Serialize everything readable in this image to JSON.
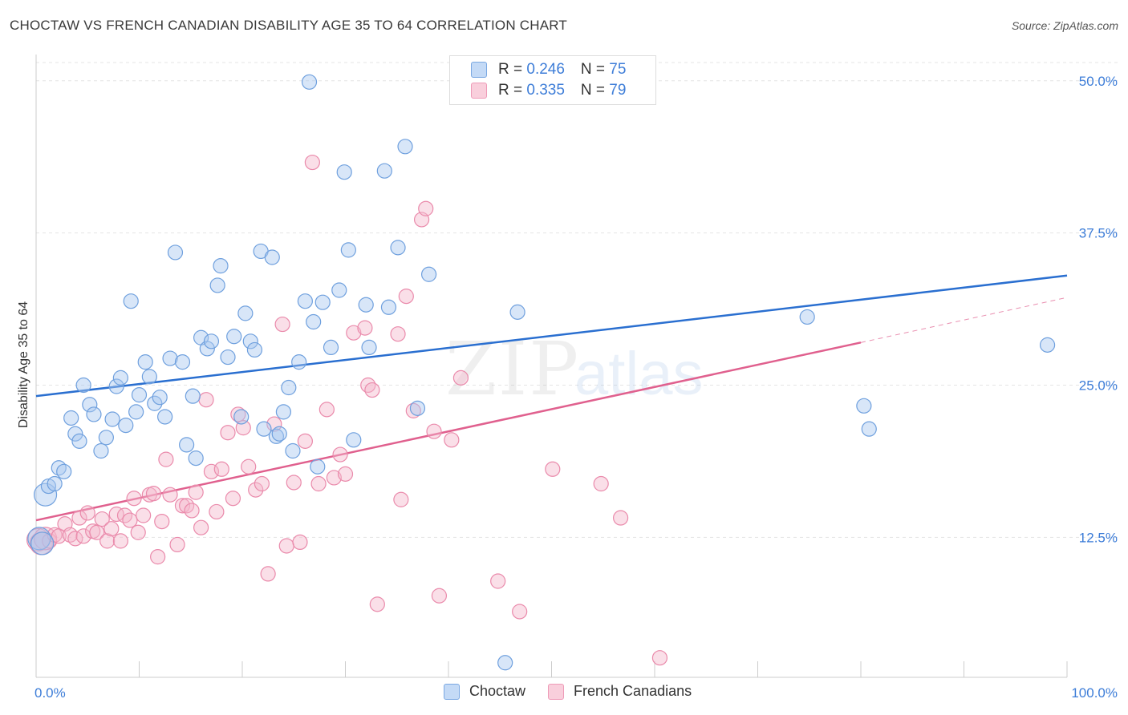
{
  "title": "CHOCTAW VS FRENCH CANADIAN DISABILITY AGE 35 TO 64 CORRELATION CHART",
  "source": "Source: ZipAtlas.com",
  "watermark": {
    "zip": "ZIP",
    "atlas": "atlas"
  },
  "legend": {
    "rows": [
      {
        "r_label": "R = ",
        "r_value": "0.246",
        "n_label": "N = ",
        "n_value": "75"
      },
      {
        "r_label": "R = ",
        "r_value": "0.335",
        "n_label": "N = ",
        "n_value": "79"
      }
    ],
    "bottom": [
      "Choctaw",
      "French Canadians"
    ]
  },
  "colors": {
    "choctaw_fill": "#a9c8f0",
    "choctaw_stroke": "#6fa0de",
    "choctaw_line": "#2a6fd0",
    "french_fill": "#f5b8cb",
    "french_stroke": "#ea8aab",
    "french_line": "#e0608e",
    "tick_label": "#3d7dd8",
    "grid": "#e4e4e4"
  },
  "chart_data": {
    "type": "scatter",
    "title": "CHOCTAW VS FRENCH CANADIAN DISABILITY AGE 35 TO 64 CORRELATION CHART",
    "xlabel": "",
    "ylabel": "Disability Age 35 to 64",
    "x_tick_labels": [
      "0.0%",
      "100.0%"
    ],
    "y_tick_labels": [
      "12.5%",
      "25.0%",
      "37.5%",
      "50.0%"
    ],
    "y_ticks": [
      12.5,
      25.0,
      37.5,
      50.0
    ],
    "xlim": [
      0,
      100
    ],
    "ylim": [
      1.0,
      51.5
    ],
    "grid": true,
    "legend_position": "top-center",
    "series": [
      {
        "name": "Choctaw",
        "r": 0.246,
        "n": 75,
        "trend": {
          "x0": 0,
          "y0": 24.1,
          "x1": 100,
          "y1": 34.0
        },
        "points": [
          [
            0.3,
            12.4
          ],
          [
            0.6,
            12.0
          ],
          [
            0.9,
            16.0
          ],
          [
            1.2,
            16.7
          ],
          [
            1.8,
            16.9
          ],
          [
            2.2,
            18.2
          ],
          [
            2.7,
            17.9
          ],
          [
            3.4,
            22.3
          ],
          [
            3.8,
            21.0
          ],
          [
            4.2,
            20.4
          ],
          [
            4.6,
            25.0
          ],
          [
            5.2,
            23.4
          ],
          [
            5.6,
            22.6
          ],
          [
            6.3,
            19.6
          ],
          [
            6.8,
            20.7
          ],
          [
            7.4,
            22.2
          ],
          [
            7.8,
            24.9
          ],
          [
            8.2,
            25.6
          ],
          [
            8.7,
            21.7
          ],
          [
            9.2,
            31.9
          ],
          [
            9.7,
            22.8
          ],
          [
            10.0,
            24.2
          ],
          [
            10.6,
            26.9
          ],
          [
            11.0,
            25.7
          ],
          [
            11.5,
            23.5
          ],
          [
            12.0,
            24.0
          ],
          [
            12.5,
            22.4
          ],
          [
            13.0,
            27.2
          ],
          [
            13.5,
            35.9
          ],
          [
            14.2,
            26.9
          ],
          [
            14.6,
            20.1
          ],
          [
            15.2,
            24.1
          ],
          [
            15.5,
            19.0
          ],
          [
            16.0,
            28.9
          ],
          [
            16.6,
            28.0
          ],
          [
            17.0,
            28.6
          ],
          [
            17.6,
            33.2
          ],
          [
            17.9,
            34.8
          ],
          [
            18.6,
            27.3
          ],
          [
            19.2,
            29.0
          ],
          [
            19.9,
            22.4
          ],
          [
            20.3,
            30.9
          ],
          [
            20.8,
            28.6
          ],
          [
            21.2,
            27.9
          ],
          [
            21.8,
            36.0
          ],
          [
            22.1,
            21.4
          ],
          [
            22.9,
            35.5
          ],
          [
            23.3,
            20.8
          ],
          [
            23.6,
            21.0
          ],
          [
            24.0,
            22.8
          ],
          [
            24.5,
            24.8
          ],
          [
            24.9,
            19.6
          ],
          [
            25.5,
            26.9
          ],
          [
            26.1,
            31.9
          ],
          [
            26.5,
            49.9
          ],
          [
            26.9,
            30.2
          ],
          [
            27.3,
            18.3
          ],
          [
            27.8,
            31.8
          ],
          [
            28.6,
            28.1
          ],
          [
            29.4,
            32.8
          ],
          [
            29.9,
            42.5
          ],
          [
            30.3,
            36.1
          ],
          [
            30.8,
            20.5
          ],
          [
            32.0,
            31.6
          ],
          [
            32.3,
            28.1
          ],
          [
            33.8,
            42.6
          ],
          [
            34.2,
            31.4
          ],
          [
            35.1,
            36.3
          ],
          [
            35.8,
            44.6
          ],
          [
            37.0,
            23.1
          ],
          [
            38.1,
            34.1
          ],
          [
            45.5,
            2.2
          ],
          [
            46.7,
            31.0
          ],
          [
            74.8,
            30.6
          ],
          [
            80.3,
            23.3
          ],
          [
            80.8,
            21.4
          ],
          [
            98.1,
            28.3
          ]
        ]
      },
      {
        "name": "French Canadians",
        "r": 0.335,
        "n": 79,
        "trend": {
          "x0": 0,
          "y0": 13.9,
          "x1": 80,
          "y1": 28.5,
          "dash_x1": 100,
          "dash_y1": 32.2
        },
        "points": [
          [
            0.2,
            12.3
          ],
          [
            0.5,
            12.0
          ],
          [
            0.9,
            12.4
          ],
          [
            1.3,
            12.2
          ],
          [
            1.8,
            12.7
          ],
          [
            2.2,
            12.6
          ],
          [
            2.8,
            13.6
          ],
          [
            3.3,
            12.7
          ],
          [
            3.8,
            12.4
          ],
          [
            4.2,
            14.1
          ],
          [
            4.6,
            12.6
          ],
          [
            5.0,
            14.5
          ],
          [
            5.5,
            13.0
          ],
          [
            5.9,
            12.9
          ],
          [
            6.4,
            14.0
          ],
          [
            6.9,
            12.2
          ],
          [
            7.3,
            13.2
          ],
          [
            7.8,
            14.4
          ],
          [
            8.2,
            12.2
          ],
          [
            8.6,
            14.3
          ],
          [
            9.1,
            13.9
          ],
          [
            9.5,
            15.7
          ],
          [
            9.9,
            12.9
          ],
          [
            10.4,
            14.3
          ],
          [
            11.0,
            16.0
          ],
          [
            11.4,
            16.1
          ],
          [
            11.8,
            10.9
          ],
          [
            12.2,
            13.8
          ],
          [
            12.6,
            18.9
          ],
          [
            13.0,
            16.0
          ],
          [
            13.7,
            11.9
          ],
          [
            14.2,
            15.1
          ],
          [
            14.6,
            15.1
          ],
          [
            15.1,
            14.7
          ],
          [
            15.5,
            16.2
          ],
          [
            16.0,
            13.3
          ],
          [
            16.5,
            23.8
          ],
          [
            17.0,
            17.9
          ],
          [
            17.5,
            14.6
          ],
          [
            18.0,
            18.1
          ],
          [
            18.6,
            21.1
          ],
          [
            19.1,
            15.7
          ],
          [
            19.6,
            22.6
          ],
          [
            20.1,
            21.5
          ],
          [
            20.6,
            18.3
          ],
          [
            21.3,
            16.4
          ],
          [
            21.9,
            16.9
          ],
          [
            22.5,
            9.5
          ],
          [
            23.1,
            21.8
          ],
          [
            23.9,
            30.0
          ],
          [
            24.3,
            11.8
          ],
          [
            25.0,
            17.0
          ],
          [
            25.6,
            12.1
          ],
          [
            26.1,
            20.4
          ],
          [
            26.8,
            43.3
          ],
          [
            27.4,
            16.9
          ],
          [
            28.2,
            23.0
          ],
          [
            28.9,
            17.4
          ],
          [
            29.5,
            19.3
          ],
          [
            30.0,
            17.7
          ],
          [
            30.8,
            29.3
          ],
          [
            31.9,
            29.7
          ],
          [
            32.2,
            25.0
          ],
          [
            32.6,
            24.6
          ],
          [
            33.1,
            7.0
          ],
          [
            35.1,
            29.2
          ],
          [
            35.4,
            15.6
          ],
          [
            35.9,
            32.3
          ],
          [
            36.6,
            22.9
          ],
          [
            37.4,
            38.6
          ],
          [
            37.8,
            39.5
          ],
          [
            38.6,
            21.2
          ],
          [
            39.1,
            7.7
          ],
          [
            40.3,
            20.5
          ],
          [
            41.2,
            25.6
          ],
          [
            44.8,
            8.9
          ],
          [
            46.9,
            6.4
          ],
          [
            50.1,
            18.1
          ],
          [
            54.8,
            16.9
          ],
          [
            56.7,
            14.1
          ],
          [
            60.5,
            2.6
          ]
        ]
      }
    ]
  }
}
